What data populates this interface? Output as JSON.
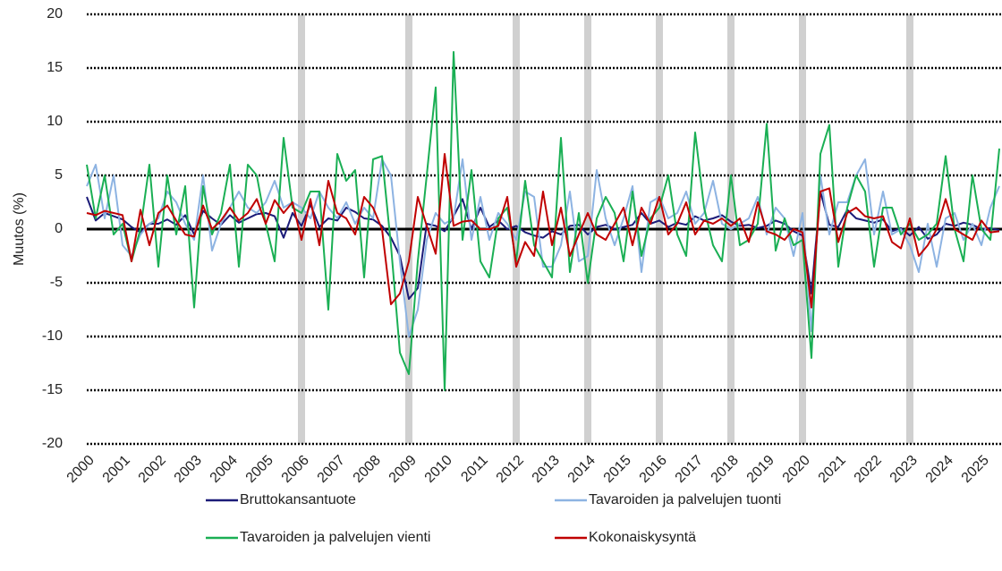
{
  "chart_data": {
    "type": "line",
    "y_label": "Muutos (%)",
    "x": [
      2000,
      2000.25,
      2000.5,
      2000.75,
      2001,
      2001.25,
      2001.5,
      2001.75,
      2002,
      2002.25,
      2002.5,
      2002.75,
      2003,
      2003.25,
      2003.5,
      2003.75,
      2004,
      2004.25,
      2004.5,
      2004.75,
      2005,
      2005.25,
      2005.5,
      2005.75,
      2006,
      2006.25,
      2006.5,
      2006.75,
      2007,
      2007.25,
      2007.5,
      2007.75,
      2008,
      2008.25,
      2008.5,
      2008.75,
      2009,
      2009.25,
      2009.5,
      2009.75,
      2010,
      2010.25,
      2010.5,
      2010.75,
      2011,
      2011.25,
      2011.5,
      2011.75,
      2012,
      2012.25,
      2012.5,
      2012.75,
      2013,
      2013.25,
      2013.5,
      2013.75,
      2014,
      2014.25,
      2014.5,
      2014.75,
      2015,
      2015.25,
      2015.5,
      2015.75,
      2016,
      2016.25,
      2016.5,
      2016.75,
      2017,
      2017.25,
      2017.5,
      2017.75,
      2018,
      2018.25,
      2018.5,
      2018.75,
      2019,
      2019.25,
      2019.5,
      2019.75,
      2020,
      2020.25,
      2020.5,
      2020.75,
      2021,
      2021.25,
      2021.5,
      2021.75,
      2022,
      2022.25,
      2022.5,
      2022.75,
      2023,
      2023.25,
      2023.5,
      2023.75,
      2024,
      2024.25,
      2024.5,
      2024.75,
      2025,
      2025.25,
      2025.5
    ],
    "series": [
      {
        "name": "Bruttokansantuote",
        "color": "#1b1b78",
        "values": [
          3.0,
          0.8,
          1.5,
          1.2,
          0.9,
          0.2,
          -0.3,
          0.5,
          0.5,
          0.9,
          0.4,
          1.3,
          -0.5,
          1.7,
          1.0,
          0.4,
          1.3,
          0.6,
          1.0,
          1.4,
          1.5,
          1.2,
          -0.8,
          1.5,
          0.3,
          2.3,
          0.2,
          1.0,
          0.8,
          2.0,
          1.6,
          1.0,
          0.9,
          0.3,
          -0.8,
          -2.5,
          -6.5,
          -5.5,
          0.5,
          0.3,
          -0.2,
          1.2,
          2.8,
          0.0,
          2.0,
          0.2,
          0.8,
          0.0,
          0.3,
          -0.3,
          -0.6,
          -0.8,
          -0.2,
          -0.5,
          0.3,
          0.4,
          -0.5,
          0.2,
          0.4,
          0.0,
          0.2,
          0.4,
          1.5,
          0.5,
          0.8,
          0.2,
          0.6,
          0.4,
          1.2,
          0.8,
          1.0,
          1.3,
          0.7,
          0.3,
          0.4,
          0.1,
          0.3,
          0.8,
          0.5,
          -0.2,
          -0.6,
          -6.0,
          3.5,
          0.4,
          0.2,
          1.8,
          1.0,
          0.8,
          0.6,
          0.9,
          -0.2,
          0.1,
          -0.6,
          0.2,
          -0.9,
          -0.5,
          0.5,
          0.3,
          0.6,
          0.4,
          0.0,
          0.1,
          -0.1
        ]
      },
      {
        "name": "Tavaroiden ja palvelujen tuonti",
        "color": "#8db3e2",
        "values": [
          4.0,
          6.0,
          1.0,
          5.0,
          -1.5,
          -2.5,
          -0.5,
          0.5,
          1.0,
          3.5,
          2.5,
          0.5,
          -1.0,
          5.0,
          -2.0,
          0.5,
          2.0,
          3.5,
          2.0,
          1.5,
          2.5,
          4.5,
          2.0,
          2.5,
          2.0,
          1.0,
          3.5,
          2.0,
          1.0,
          2.5,
          0.5,
          2.0,
          1.0,
          6.5,
          5.0,
          -3.0,
          -10.0,
          -7.5,
          -1.0,
          1.5,
          0.5,
          1.0,
          6.5,
          -1.0,
          3.0,
          -1.0,
          1.5,
          0.5,
          -1.0,
          3.5,
          3.0,
          -3.5,
          -3.5,
          -1.5,
          3.5,
          -3.0,
          -2.5,
          5.5,
          1.0,
          -1.5,
          1.0,
          4.0,
          -4.0,
          2.5,
          3.0,
          1.0,
          1.5,
          3.5,
          0.5,
          1.5,
          4.5,
          0.5,
          0.0,
          0.5,
          1.0,
          3.0,
          -0.5,
          2.0,
          1.0,
          -2.5,
          1.5,
          -9.5,
          5.0,
          -0.5,
          2.5,
          2.5,
          5.0,
          6.5,
          -0.5,
          3.5,
          -0.5,
          0.0,
          -1.5,
          -4.0,
          0.5,
          -3.5,
          1.0,
          1.5,
          -1.0,
          0.5,
          -1.5,
          2.0,
          4.0
        ]
      },
      {
        "name": "Tavaroiden ja palvelujen vienti",
        "color": "#1aaf54",
        "values": [
          6.0,
          1.0,
          5.0,
          -0.5,
          0.5,
          -3.0,
          0.0,
          6.0,
          -3.5,
          5.0,
          -0.5,
          4.0,
          -7.3,
          4.0,
          -0.5,
          1.5,
          6.0,
          -3.5,
          6.0,
          5.0,
          0.5,
          -3.0,
          8.5,
          2.0,
          1.5,
          3.5,
          3.5,
          -7.5,
          7.0,
          4.5,
          5.5,
          -4.5,
          6.5,
          6.8,
          -1.5,
          -11.5,
          -13.5,
          -3.0,
          5.0,
          13.2,
          -15.0,
          16.5,
          -1.0,
          5.5,
          -3.0,
          -4.5,
          1.0,
          2.0,
          -3.0,
          4.5,
          -1.5,
          -3.0,
          -4.5,
          8.5,
          -4.0,
          1.5,
          -5.0,
          1.0,
          3.0,
          1.5,
          -3.0,
          3.5,
          -2.5,
          1.0,
          2.0,
          5.0,
          -0.5,
          -2.5,
          9.0,
          2.0,
          -1.5,
          -3.0,
          5.0,
          -1.5,
          -1.0,
          0.5,
          9.8,
          -2.0,
          1.0,
          -1.5,
          -1.0,
          -12.0,
          7.0,
          9.7,
          -3.5,
          2.0,
          5.0,
          3.5,
          -3.5,
          2.0,
          2.0,
          -0.5,
          0.5,
          -1.0,
          -0.5,
          0.5,
          6.8,
          0.0,
          -3.0,
          5.0,
          0.0,
          -1.0,
          7.5
        ]
      },
      {
        "name": "Kokonaiskysyntä",
        "color": "#c00000",
        "values": [
          1.5,
          1.3,
          1.7,
          1.5,
          1.3,
          -3.0,
          1.8,
          -1.5,
          1.5,
          2.2,
          0.8,
          -0.5,
          -0.7,
          2.2,
          0.0,
          0.8,
          2.0,
          0.8,
          1.5,
          2.8,
          0.5,
          2.7,
          1.5,
          2.5,
          -1.0,
          2.8,
          -1.5,
          4.5,
          1.5,
          1.0,
          -0.5,
          3.0,
          2.0,
          0.0,
          -7.0,
          -6.0,
          -3.0,
          3.0,
          0.3,
          -2.3,
          7.0,
          0.3,
          0.7,
          0.8,
          0.0,
          0.0,
          0.3,
          3.0,
          -3.5,
          -1.2,
          -2.5,
          3.5,
          -1.5,
          2.0,
          -2.5,
          -0.5,
          1.5,
          -0.5,
          -1.0,
          0.5,
          2.0,
          -1.5,
          2.0,
          0.5,
          3.0,
          -0.5,
          0.5,
          2.5,
          -0.5,
          0.8,
          0.5,
          1.0,
          0.3,
          1.0,
          -1.2,
          2.5,
          -0.2,
          -0.5,
          -1.0,
          0.0,
          -0.3,
          -7.3,
          3.5,
          3.8,
          -1.2,
          1.5,
          2.0,
          1.2,
          1.0,
          1.2,
          -1.2,
          -1.8,
          1.0,
          -2.5,
          -1.5,
          0.0,
          2.8,
          0.0,
          -0.5,
          -1.0,
          0.8,
          -0.3,
          -0.2
        ]
      }
    ],
    "shaded_x": [
      2006,
      2009,
      2012,
      2014,
      2016,
      2018,
      2020,
      2023
    ],
    "xlim": [
      2000,
      2025.575
    ],
    "xticks": [
      2000,
      2001,
      2002,
      2003,
      2004,
      2005,
      2006,
      2007,
      2008,
      2009,
      2010,
      2011,
      2012,
      2013,
      2014,
      2015,
      2016,
      2017,
      2018,
      2019,
      2020,
      2021,
      2022,
      2023,
      2024,
      2025
    ],
    "ylim": [
      -20,
      20
    ],
    "yticks": [
      -20,
      -15,
      -10,
      -5,
      0,
      5,
      10,
      15,
      20
    ],
    "grid": true
  }
}
